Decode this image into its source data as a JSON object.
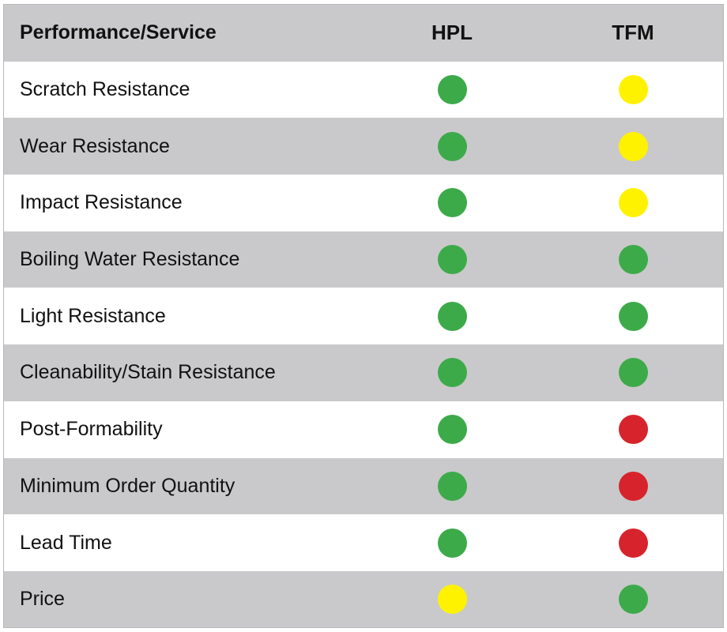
{
  "header": {
    "feature_label": "Performance/Service",
    "columns": [
      "HPL",
      "TFM"
    ]
  },
  "ratings_legend_colors": {
    "green": "#3daa49",
    "yellow": "#fff200",
    "red": "#d7242c"
  },
  "rows": [
    {
      "label": "Scratch Resistance",
      "hpl": "green",
      "tfm": "yellow"
    },
    {
      "label": "Wear Resistance",
      "hpl": "green",
      "tfm": "yellow"
    },
    {
      "label": "Impact Resistance",
      "hpl": "green",
      "tfm": "yellow"
    },
    {
      "label": "Boiling Water Resistance",
      "hpl": "green",
      "tfm": "green"
    },
    {
      "label": "Light Resistance",
      "hpl": "green",
      "tfm": "green"
    },
    {
      "label": "Cleanability/Stain Resistance",
      "hpl": "green",
      "tfm": "green"
    },
    {
      "label": "Post-Formability",
      "hpl": "green",
      "tfm": "red"
    },
    {
      "label": "Minimum Order Quantity",
      "hpl": "green",
      "tfm": "red"
    },
    {
      "label": "Lead Time",
      "hpl": "green",
      "tfm": "red"
    },
    {
      "label": "Price",
      "hpl": "yellow",
      "tfm": "green"
    }
  ]
}
